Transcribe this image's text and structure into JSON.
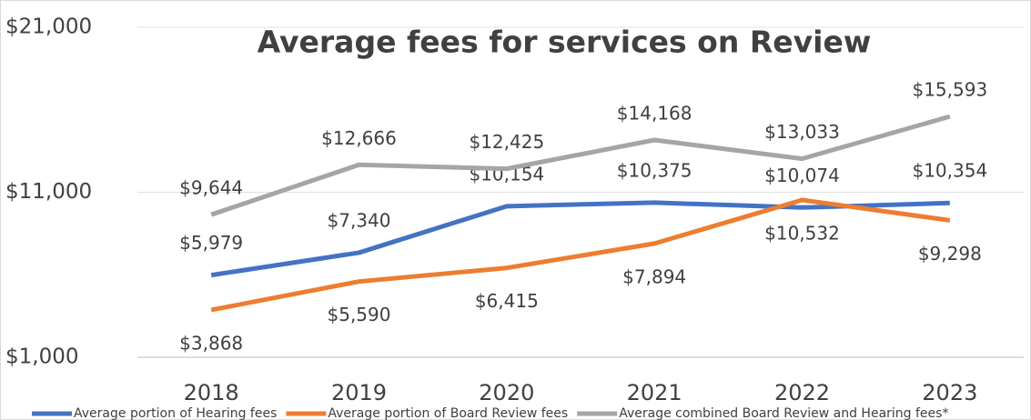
{
  "chart_data": {
    "type": "line",
    "title": "Average fees for services on Review",
    "categories": [
      "2018",
      "2019",
      "2020",
      "2021",
      "2022",
      "2023"
    ],
    "series": [
      {
        "name": "Average portion of Hearing fees",
        "color": "#4472c4",
        "values": [
          5979,
          7340,
          10154,
          10375,
          10074,
          10354
        ],
        "value_labels": [
          "$5,979",
          "$7,340",
          "$10,154",
          "$10,375",
          "$10,074",
          "$10,354"
        ]
      },
      {
        "name": "Average portion of Board Review fees",
        "color": "#ed7d31",
        "values": [
          3868,
          5590,
          6415,
          7894,
          10532,
          9298
        ],
        "value_labels": [
          "$3,868",
          "$5,590",
          "$6,415",
          "$7,894",
          "$10,532",
          "$9,298"
        ]
      },
      {
        "name": "Average combined Board Review and Hearing fees*",
        "color": "#a5a5a5",
        "values": [
          9644,
          12666,
          12425,
          14168,
          13033,
          15593
        ],
        "value_labels": [
          "$9,644",
          "$12,666",
          "$12,425",
          "$14,168",
          "$13,033",
          "$15,593"
        ]
      }
    ],
    "ylim": [
      1000,
      21000
    ],
    "yticks": [
      {
        "value": 1000,
        "label": "$1,000"
      },
      {
        "value": 11000,
        "label": "$11,000"
      },
      {
        "value": 21000,
        "label": "$21,000"
      }
    ],
    "grid": true,
    "legend": "bottom"
  }
}
